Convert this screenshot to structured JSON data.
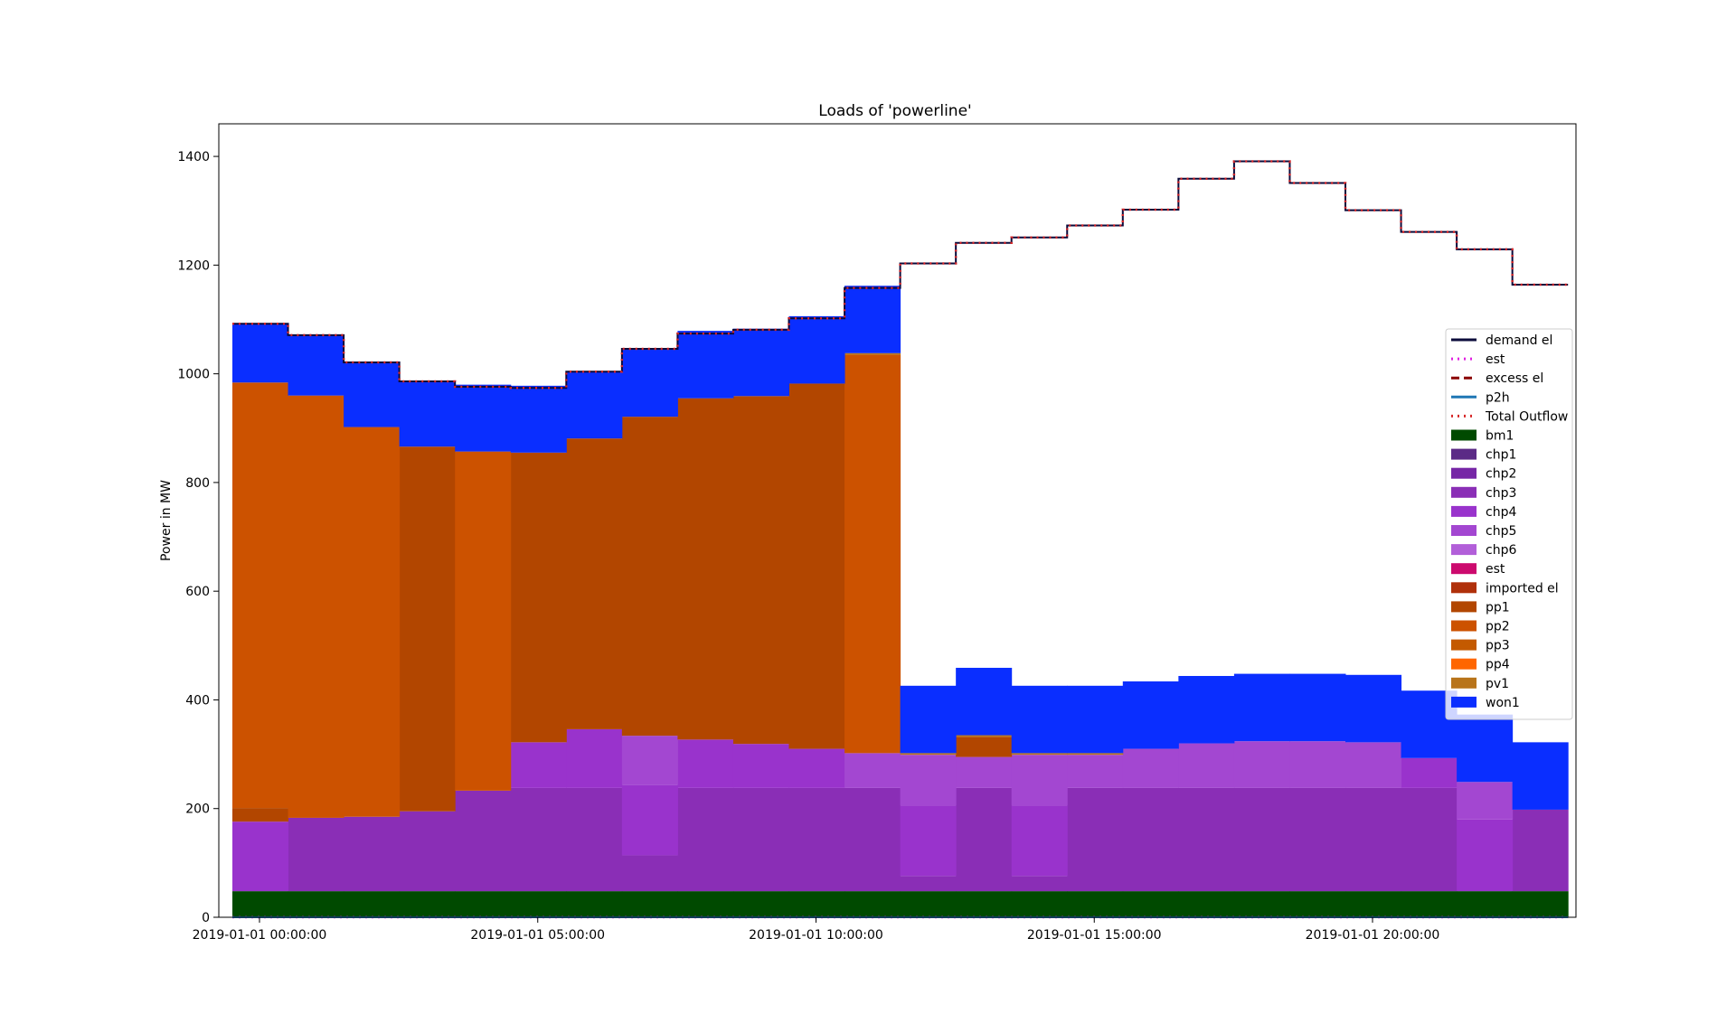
{
  "chart_data": {
    "type": "area",
    "step": "post",
    "title": "Loads of 'powerline'",
    "xlabel": "",
    "ylabel": "Power in MW",
    "ylim": [
      0,
      1460
    ],
    "y_ticks": [
      0,
      200,
      400,
      600,
      800,
      1000,
      1200,
      1400
    ],
    "x_hours": [
      0,
      1,
      2,
      3,
      4,
      5,
      6,
      7,
      8,
      9,
      10,
      11,
      12,
      13,
      14,
      15,
      16,
      17,
      18,
      19,
      20,
      21,
      22,
      23
    ],
    "x_ticks": [
      {
        "hour": 0,
        "label": "2019-01-01 00:00:00"
      },
      {
        "hour": 5,
        "label": "2019-01-01 05:00:00"
      },
      {
        "hour": 10,
        "label": "2019-01-01 10:00:00"
      },
      {
        "hour": 15,
        "label": "2019-01-01 15:00:00"
      },
      {
        "hour": 20,
        "label": "2019-01-01 20:00:00"
      }
    ],
    "legend_position": "right",
    "stacked_series": [
      {
        "name": "bm1",
        "color": "#004a00",
        "values": [
          48,
          48,
          48,
          48,
          48,
          48,
          48,
          48,
          48,
          48,
          48,
          48,
          48,
          48,
          48,
          48,
          48,
          48,
          48,
          48,
          48,
          48,
          48,
          48
        ]
      },
      {
        "name": "chp1",
        "color": "#5b2a86",
        "values": [
          0,
          0,
          0,
          0,
          0,
          0,
          0,
          0,
          0,
          0,
          0,
          0,
          0,
          0,
          0,
          0,
          0,
          0,
          0,
          0,
          0,
          0,
          0,
          0
        ]
      },
      {
        "name": "chp2",
        "color": "#7626a6",
        "values": [
          0,
          0,
          0,
          0,
          0,
          0,
          0,
          0,
          0,
          0,
          0,
          0,
          0,
          0,
          0,
          0,
          0,
          0,
          0,
          0,
          0,
          0,
          0,
          0
        ]
      },
      {
        "name": "chp3",
        "color": "#8a2eb6",
        "values": [
          0,
          135,
          137,
          147,
          185,
          190,
          190,
          66,
          190,
          190,
          190,
          190,
          28,
          190,
          28,
          190,
          190,
          190,
          190,
          190,
          190,
          190,
          0,
          150
        ]
      },
      {
        "name": "chp4",
        "color": "#9933cc",
        "values": [
          128,
          0,
          0,
          0,
          0,
          84,
          108,
          130,
          89,
          81,
          72,
          0,
          130,
          0,
          130,
          0,
          0,
          0,
          0,
          0,
          0,
          55,
          132,
          0
        ]
      },
      {
        "name": "chp5",
        "color": "#a347d1",
        "values": [
          0,
          0,
          0,
          0,
          0,
          0,
          0,
          90,
          0,
          0,
          0,
          64,
          93,
          57,
          93,
          61,
          72,
          82,
          86,
          86,
          84,
          0,
          69,
          0
        ]
      },
      {
        "name": "chp6",
        "color": "#b25fd9",
        "values": [
          0,
          0,
          0,
          0,
          0,
          0,
          0,
          0,
          0,
          0,
          0,
          0,
          0,
          0,
          0,
          0,
          0,
          0,
          0,
          0,
          0,
          0,
          0,
          0
        ]
      },
      {
        "name": "est",
        "color": "#cc0a6e",
        "values": [
          0,
          0,
          0,
          0,
          0,
          0,
          0,
          0,
          0,
          0,
          0,
          0,
          0,
          0,
          0,
          0,
          0,
          0,
          0,
          0,
          0,
          0,
          0,
          0
        ]
      },
      {
        "name": "imported el",
        "color": "#b0300a",
        "values": [
          0,
          0,
          0,
          0,
          0,
          0,
          0,
          0,
          0,
          0,
          0,
          0,
          0,
          0,
          0,
          0,
          0,
          0,
          0,
          0,
          0,
          0,
          0,
          0
        ]
      },
      {
        "name": "pp1",
        "color": "#b24600",
        "values": [
          25,
          0,
          0,
          671,
          0,
          533,
          535,
          587,
          628,
          640,
          672,
          0,
          0,
          37,
          0,
          0,
          0,
          0,
          0,
          0,
          0,
          0,
          0,
          0
        ]
      },
      {
        "name": "pp2",
        "color": "#cc5200",
        "values": [
          783,
          777,
          717,
          0,
          624,
          0,
          0,
          0,
          0,
          0,
          0,
          733,
          0,
          0,
          0,
          0,
          0,
          0,
          0,
          0,
          0,
          0,
          0,
          0
        ]
      },
      {
        "name": "pp3",
        "color": "#c45a00",
        "values": [
          0,
          0,
          0,
          0,
          0,
          0,
          0,
          0,
          0,
          0,
          0,
          0,
          0,
          0,
          0,
          0,
          0,
          0,
          0,
          0,
          0,
          0,
          0,
          0
        ]
      },
      {
        "name": "pp4",
        "color": "#ff6600",
        "values": [
          0,
          0,
          0,
          0,
          0,
          0,
          0,
          0,
          0,
          0,
          0,
          0,
          0,
          0,
          0,
          0,
          0,
          0,
          0,
          0,
          0,
          0,
          0,
          0
        ]
      },
      {
        "name": "pv1",
        "color": "#b8741a",
        "values": [
          0,
          0,
          0,
          0,
          0,
          0,
          0,
          0,
          0,
          0,
          0,
          3,
          3,
          3,
          3,
          3,
          0,
          0,
          0,
          0,
          0,
          0,
          0,
          0
        ]
      },
      {
        "name": "won1",
        "color": "#0a2eff",
        "values": [
          107,
          110,
          120,
          120,
          123,
          123,
          124,
          124,
          124,
          124,
          124,
          124,
          124,
          124,
          124,
          124,
          124,
          124,
          124,
          124,
          124,
          124,
          124,
          124
        ]
      }
    ],
    "stacked_overlays": {
      "pp1_hours": [
        4,
        5,
        6,
        7,
        8,
        9,
        10,
        11,
        12,
        13,
        14,
        15,
        16,
        17,
        18,
        19,
        20,
        21,
        22,
        23
      ],
      "note": "upper portion of several columns drawn in a second orange tone"
    },
    "line_series": [
      {
        "name": "demand el",
        "color": "#0b0b3b",
        "style": "solid",
        "values": [
          1092,
          1071,
          1021,
          986,
          976,
          974,
          1004,
          1046,
          1074,
          1081,
          1102,
          1158,
          1203,
          1241,
          1251,
          1273,
          1302,
          1359,
          1391,
          1351,
          1301,
          1261,
          1229,
          1164
        ]
      },
      {
        "name": "est",
        "color": "#e020e0",
        "style": "dotted",
        "values": [
          0,
          0,
          0,
          0,
          0,
          0,
          0,
          0,
          0,
          0,
          0,
          0,
          0,
          0,
          0,
          0,
          0,
          0,
          0,
          0,
          0,
          0,
          0,
          0
        ]
      },
      {
        "name": "excess el",
        "color": "#8b0000",
        "style": "dashed",
        "values": [
          0,
          0,
          0,
          0,
          0,
          0,
          0,
          0,
          0,
          0,
          0,
          0,
          0,
          0,
          0,
          0,
          0,
          0,
          0,
          0,
          0,
          0,
          0,
          0
        ]
      },
      {
        "name": "p2h",
        "color": "#1f77b4",
        "style": "solid",
        "values": [
          0,
          0,
          0,
          0,
          0,
          0,
          0,
          0,
          0,
          0,
          0,
          0,
          0,
          0,
          0,
          0,
          0,
          0,
          0,
          0,
          0,
          0,
          0,
          0
        ]
      },
      {
        "name": "Total Outflow",
        "color": "#d62728",
        "style": "dotted",
        "values": [
          1092,
          1071,
          1021,
          986,
          976,
          974,
          1004,
          1046,
          1074,
          1081,
          1102,
          1158,
          1203,
          1241,
          1251,
          1273,
          1302,
          1359,
          1391,
          1351,
          1301,
          1261,
          1229,
          1164
        ]
      }
    ],
    "legend": [
      {
        "name": "demand el",
        "kind": "line",
        "color": "#0b0b3b",
        "style": "solid"
      },
      {
        "name": "est",
        "kind": "line",
        "color": "#e020e0",
        "style": "dotted"
      },
      {
        "name": "excess el",
        "kind": "line",
        "color": "#8b0000",
        "style": "dashed"
      },
      {
        "name": "p2h",
        "kind": "line",
        "color": "#1f77b4",
        "style": "solid"
      },
      {
        "name": "Total Outflow",
        "kind": "line",
        "color": "#d62728",
        "style": "dotted"
      },
      {
        "name": "bm1",
        "kind": "patch",
        "color": "#004a00"
      },
      {
        "name": "chp1",
        "kind": "patch",
        "color": "#5b2a86"
      },
      {
        "name": "chp2",
        "kind": "patch",
        "color": "#7626a6"
      },
      {
        "name": "chp3",
        "kind": "patch",
        "color": "#8a2eb6"
      },
      {
        "name": "chp4",
        "kind": "patch",
        "color": "#9933cc"
      },
      {
        "name": "chp5",
        "kind": "patch",
        "color": "#a347d1"
      },
      {
        "name": "chp6",
        "kind": "patch",
        "color": "#b25fd9"
      },
      {
        "name": "est",
        "kind": "patch",
        "color": "#cc0a6e"
      },
      {
        "name": "imported el",
        "kind": "patch",
        "color": "#b0300a"
      },
      {
        "name": "pp1",
        "kind": "patch",
        "color": "#b24600"
      },
      {
        "name": "pp2",
        "kind": "patch",
        "color": "#cc5200"
      },
      {
        "name": "pp3",
        "kind": "patch",
        "color": "#c45a00"
      },
      {
        "name": "pp4",
        "kind": "patch",
        "color": "#ff6600"
      },
      {
        "name": "pv1",
        "kind": "patch",
        "color": "#b8741a"
      },
      {
        "name": "won1",
        "kind": "patch",
        "color": "#0a2eff"
      }
    ]
  }
}
